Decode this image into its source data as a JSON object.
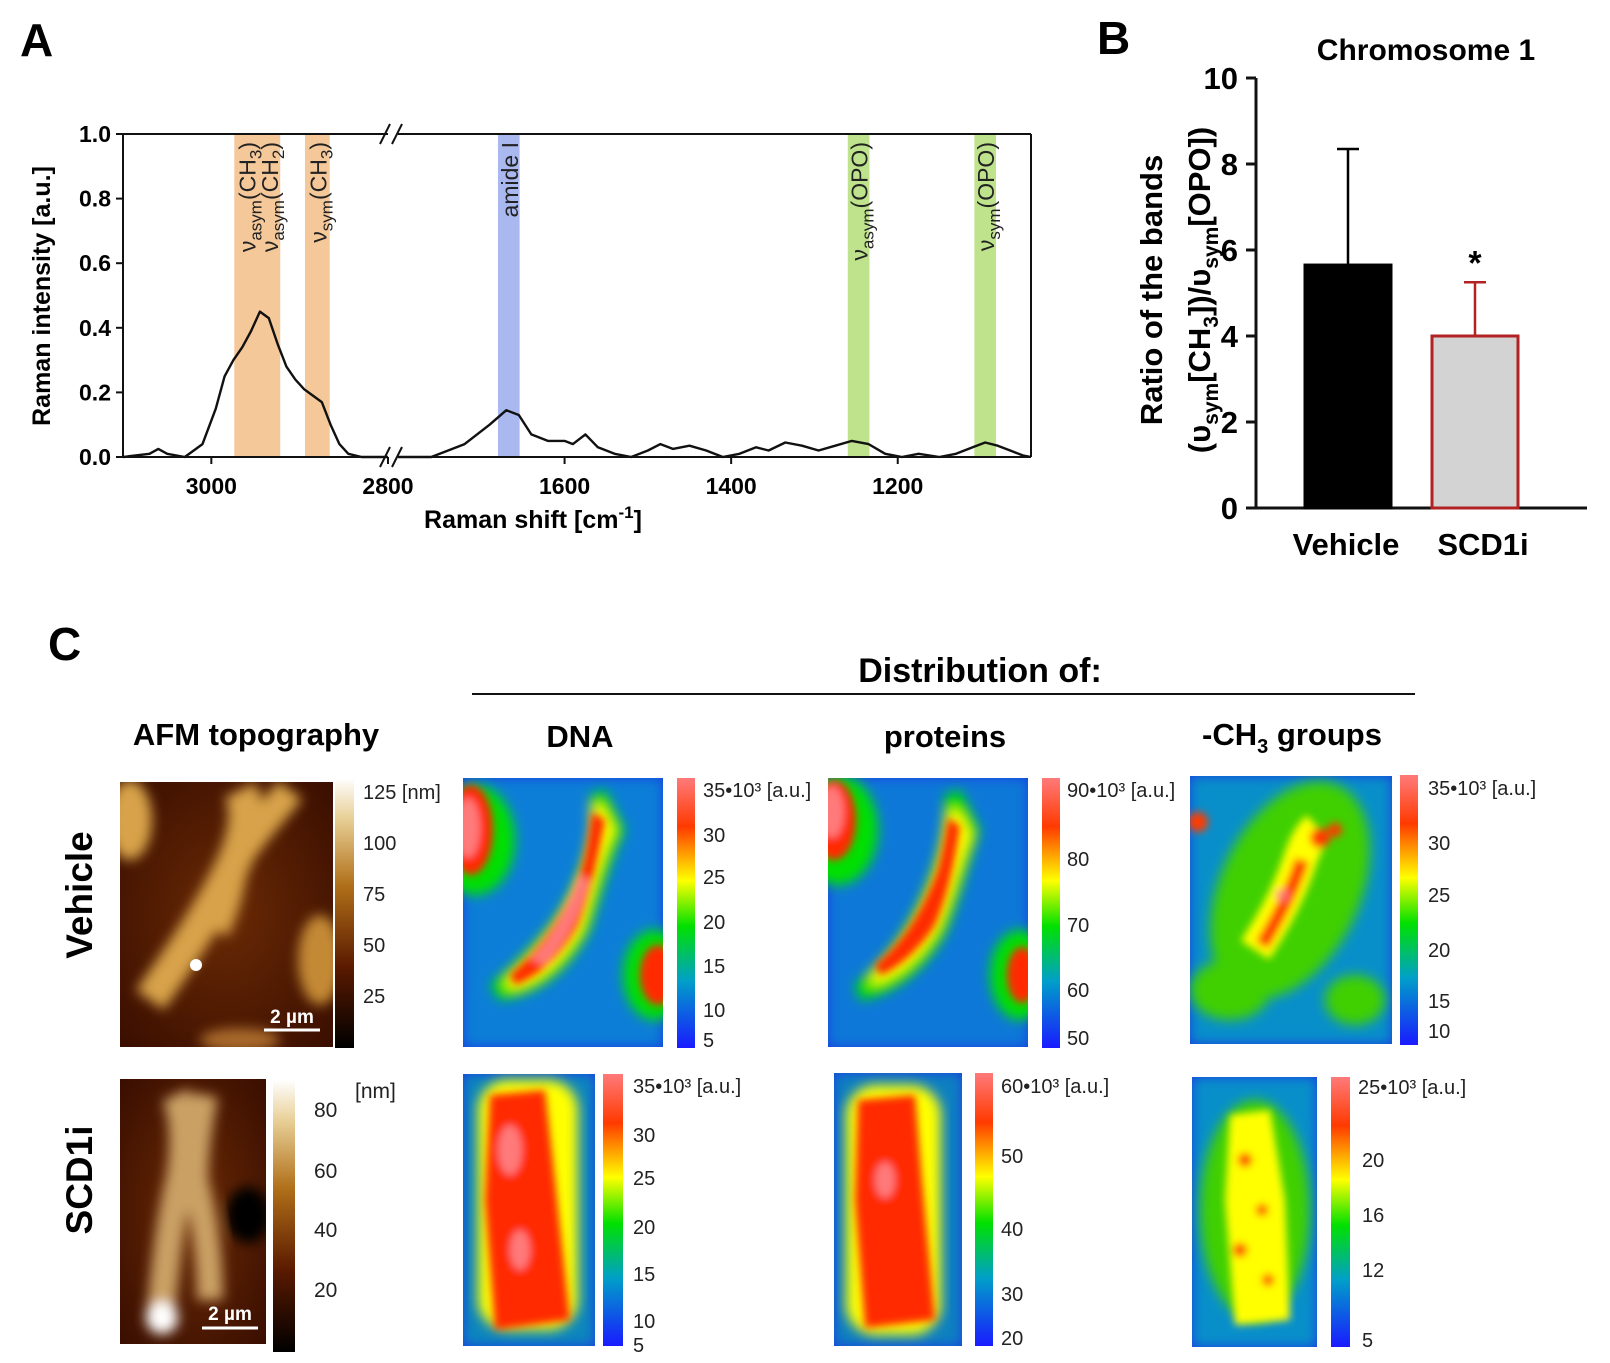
{
  "figure": {
    "panel_labels": {
      "a": "A",
      "b": "B",
      "c": "C"
    }
  },
  "chart_data": [
    {
      "panel": "A",
      "type": "line",
      "xlabel": "Raman shift [cm",
      "xlabel_sup": "-1",
      "xlabel_end": "]",
      "ylabel": "Raman intensity [a.u.]",
      "ylim": [
        0.0,
        1.0
      ],
      "yticks": [
        "0.0",
        "0.2",
        "0.4",
        "0.6",
        "0.8",
        "1.0"
      ],
      "xticks": [
        "3000",
        "2800",
        "1600",
        "1400",
        "1200"
      ],
      "segments": [
        {
          "xrange": [
            3100,
            2800
          ],
          "points": [
            [
              3100,
              0.0
            ],
            [
              3070,
              0.01
            ],
            [
              3060,
              0.025
            ],
            [
              3050,
              0.01
            ],
            [
              3030,
              0.0
            ],
            [
              3010,
              0.04
            ],
            [
              2995,
              0.15
            ],
            [
              2985,
              0.25
            ],
            [
              2975,
              0.3
            ],
            [
              2965,
              0.34
            ],
            [
              2955,
              0.39
            ],
            [
              2945,
              0.45
            ],
            [
              2935,
              0.43
            ],
            [
              2925,
              0.35
            ],
            [
              2915,
              0.28
            ],
            [
              2905,
              0.24
            ],
            [
              2895,
              0.21
            ],
            [
              2885,
              0.19
            ],
            [
              2875,
              0.17
            ],
            [
              2865,
              0.1
            ],
            [
              2855,
              0.04
            ],
            [
              2845,
              0.01
            ],
            [
              2830,
              0.0
            ],
            [
              2800,
              0.0
            ]
          ]
        },
        {
          "xrange": [
            1800,
            1040
          ],
          "points": [
            [
              1800,
              0.0
            ],
            [
              1760,
              0.0
            ],
            [
              1720,
              0.04
            ],
            [
              1690,
              0.1
            ],
            [
              1670,
              0.145
            ],
            [
              1655,
              0.13
            ],
            [
              1640,
              0.07
            ],
            [
              1620,
              0.05
            ],
            [
              1600,
              0.05
            ],
            [
              1590,
              0.04
            ],
            [
              1575,
              0.07
            ],
            [
              1560,
              0.03
            ],
            [
              1540,
              0.01
            ],
            [
              1520,
              0.0
            ],
            [
              1500,
              0.02
            ],
            [
              1485,
              0.04
            ],
            [
              1470,
              0.025
            ],
            [
              1450,
              0.035
            ],
            [
              1430,
              0.02
            ],
            [
              1410,
              0.0
            ],
            [
              1390,
              0.01
            ],
            [
              1370,
              0.03
            ],
            [
              1355,
              0.02
            ],
            [
              1335,
              0.045
            ],
            [
              1315,
              0.035
            ],
            [
              1295,
              0.02
            ],
            [
              1275,
              0.035
            ],
            [
              1255,
              0.05
            ],
            [
              1235,
              0.04
            ],
            [
              1215,
              0.01
            ],
            [
              1195,
              0.0
            ],
            [
              1175,
              0.01
            ],
            [
              1150,
              0.0
            ],
            [
              1130,
              0.01
            ],
            [
              1110,
              0.03
            ],
            [
              1095,
              0.045
            ],
            [
              1080,
              0.035
            ],
            [
              1065,
              0.02
            ],
            [
              1050,
              0.005
            ],
            [
              1040,
              0.0
            ]
          ]
        }
      ],
      "bands": [
        {
          "center": 2960,
          "width": 28,
          "color": "#f5c89a",
          "label": "ν",
          "sub": "asym",
          "species": "(CH",
          "species_sub": "3",
          "species_end": ")"
        },
        {
          "center": 2935,
          "width": 26,
          "color": "#f5c89a",
          "label": "ν",
          "sub": "asym",
          "species": "(CH",
          "species_sub": "2",
          "species_end": ")"
        },
        {
          "center": 2880,
          "width": 28,
          "color": "#f5c89a",
          "label": "ν",
          "sub": "sym",
          "species": "(CH",
          "species_sub": "3",
          "species_end": ")"
        },
        {
          "center": 1667,
          "width": 26,
          "color": "#aab8f0",
          "label": "amide I",
          "sub": "",
          "species": "",
          "species_sub": "",
          "species_end": ""
        },
        {
          "center": 1247,
          "width": 26,
          "color": "#bfe38c",
          "label": "ν",
          "sub": "asym",
          "species": "(OPO)",
          "species_sub": "",
          "species_end": ""
        },
        {
          "center": 1095,
          "width": 26,
          "color": "#bfe38c",
          "label": "ν",
          "sub": "sym",
          "species": "(OPO)",
          "species_sub": "",
          "species_end": ""
        }
      ]
    },
    {
      "panel": "B",
      "type": "bar",
      "title": "Chromosome 1",
      "categories": [
        "Vehicle",
        "SCD1i"
      ],
      "values": [
        5.65,
        4.0
      ],
      "errors": [
        2.7,
        1.25
      ],
      "significance": [
        "",
        "*"
      ],
      "ylim": [
        0,
        10
      ],
      "yticks": [
        "0",
        "2",
        "4",
        "6",
        "8",
        "10"
      ],
      "ylabel_line1": "Ratio of the bands",
      "ylabel_line2_parts": [
        "(υ",
        "sym",
        "[CH",
        "3",
        "])/υ",
        "sym",
        "[OPO])"
      ],
      "bar_fills": [
        "#000000",
        "#d3d3d3"
      ],
      "bar_strokes": [
        "#000000",
        "#b22222"
      ]
    }
  ],
  "panelC": {
    "header": "Distribution of:",
    "columns": {
      "afm": "AFM topography",
      "dna": "DNA",
      "proteins": "proteins",
      "ch3_prefix": "-CH",
      "ch3_sub": "3",
      "ch3_suffix": " groups"
    },
    "rows": [
      "Vehicle",
      "SCD1i"
    ],
    "scalebar": "2 µm",
    "scales": {
      "veh_afm": {
        "ticks": [
          "125 [nm]",
          "100",
          "75",
          "50",
          "25"
        ]
      },
      "veh_dna": {
        "ticks": [
          "35•10³ [a.u.]",
          "30",
          "25",
          "20",
          "15",
          "10",
          "5"
        ]
      },
      "veh_prot": {
        "ticks": [
          "90•10³ [a.u.]",
          "80",
          "70",
          "60",
          "50"
        ]
      },
      "veh_ch3": {
        "ticks": [
          "35•10³ [a.u.]",
          "30",
          "25",
          "20",
          "15",
          "10"
        ]
      },
      "scd_afm": {
        "unit": "[nm]",
        "ticks": [
          "80",
          "60",
          "40",
          "20"
        ]
      },
      "scd_dna": {
        "ticks": [
          "35•10³ [a.u.]",
          "30",
          "25",
          "20",
          "15",
          "10",
          "5"
        ]
      },
      "scd_prot": {
        "ticks": [
          "60•10³ [a.u.]",
          "50",
          "40",
          "30",
          "20"
        ]
      },
      "scd_ch3": {
        "ticks": [
          "25•10³ [a.u.]",
          "20",
          "16",
          "12",
          "5"
        ]
      }
    }
  }
}
